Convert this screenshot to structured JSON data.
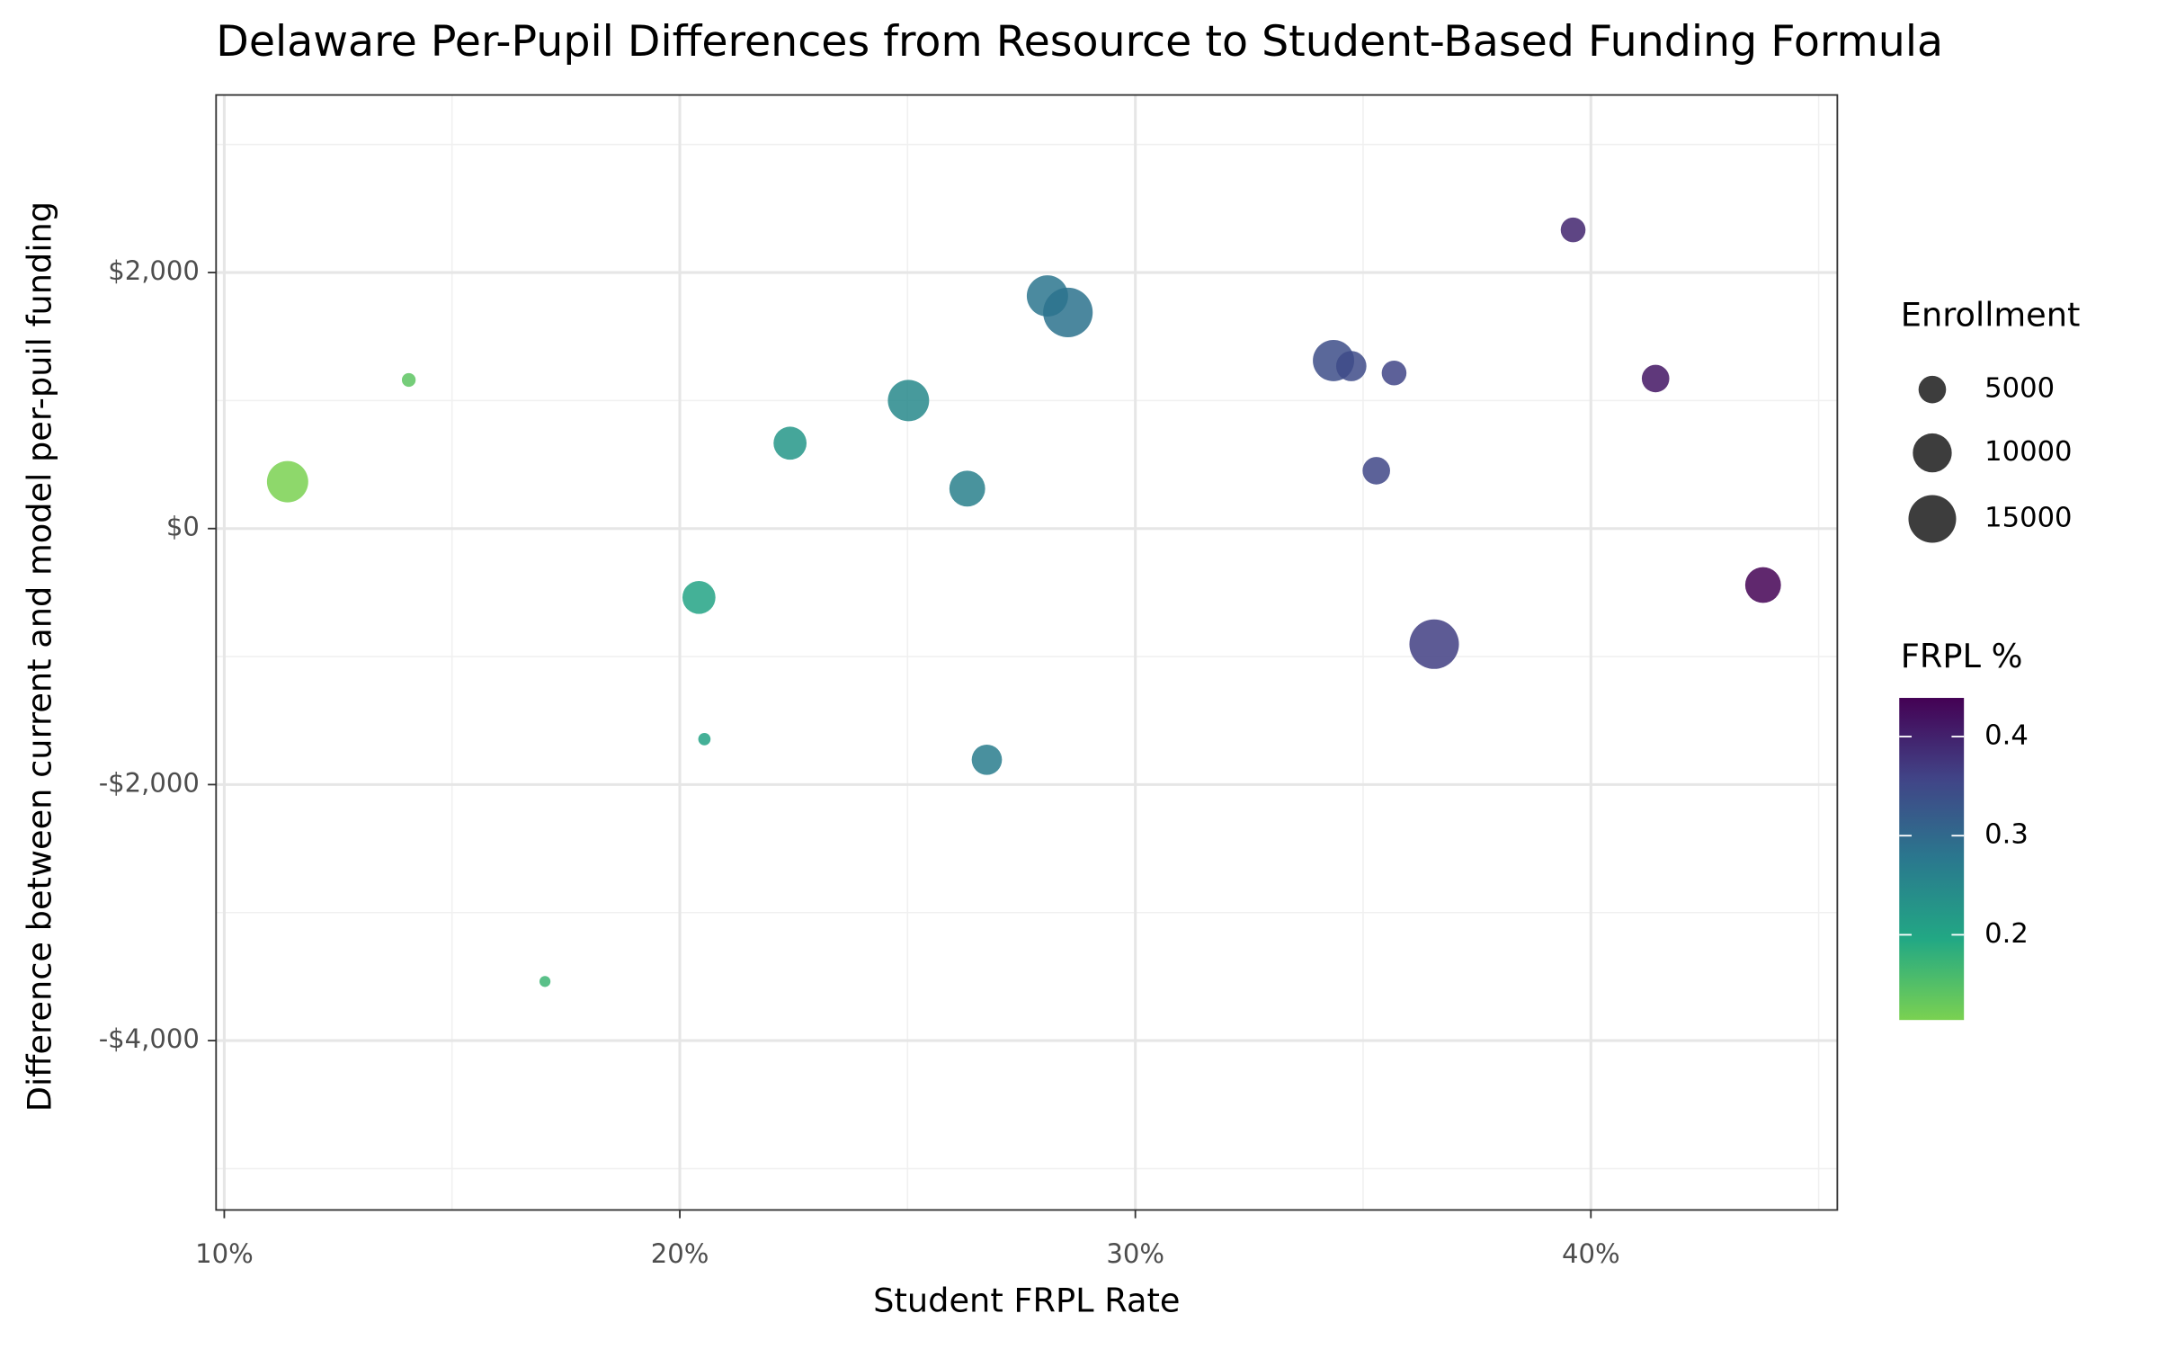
{
  "chart_data": {
    "type": "bubble",
    "title": "Delaware Per-Pupil Differences from Resource to Student-Based Funding Formula",
    "x_label": "Student FRPL Rate",
    "y_label": "Difference between current and model per-puil funding",
    "x": [
      0.1139,
      0.1405,
      0.1704,
      0.2042,
      0.2054,
      0.2242,
      0.2502,
      0.2631,
      0.2674,
      0.2807,
      0.2852,
      0.3435,
      0.3474,
      0.3529,
      0.3568,
      0.3656,
      0.3961,
      0.4142,
      0.4378
    ],
    "values": [
      366,
      1161,
      -3538,
      -538,
      -1645,
      667,
      1000,
      312,
      -1806,
      1817,
      1688,
      1312,
      1269,
      452,
      1215,
      -903,
      2333,
      1172,
      -441
    ],
    "sizes": [
      11250,
      1250,
      800,
      7200,
      1000,
      7200,
      11250,
      8450,
      6050,
      11250,
      16200,
      11250,
      6050,
      5000,
      4050,
      16200,
      4050,
      5000,
      8450
    ],
    "xlim": [
      0.0982,
      0.4541
    ],
    "xticks": [
      {
        "value": 0.1,
        "label": "10%"
      },
      {
        "value": 0.2,
        "label": "20%"
      },
      {
        "value": 0.3,
        "label": "30%"
      },
      {
        "value": 0.4,
        "label": "40%"
      }
    ],
    "xminor": [
      0.15,
      0.25,
      0.35,
      0.45
    ],
    "ylim": [
      -5323,
      3387
    ],
    "yticks": [
      {
        "value": -4000,
        "label": "-$4,000"
      },
      {
        "value": -2000,
        "label": "-$2,000"
      },
      {
        "value": 0,
        "label": "$0"
      },
      {
        "value": 2000,
        "label": "$2,000"
      }
    ],
    "yminor": [
      -5000,
      -3000,
      -1000,
      1000,
      3000
    ],
    "grid": true,
    "size_legend": {
      "title": "Enrollment",
      "values": [
        5000,
        10000,
        15000
      ]
    },
    "colorbar": {
      "title": "FRPL %",
      "lim": [
        0.114,
        0.439
      ],
      "ticks": [
        0.2,
        0.3,
        0.4
      ],
      "colors": [
        "#7AD151",
        "#22A884",
        "#2A788E",
        "#414487",
        "#440154"
      ]
    }
  }
}
